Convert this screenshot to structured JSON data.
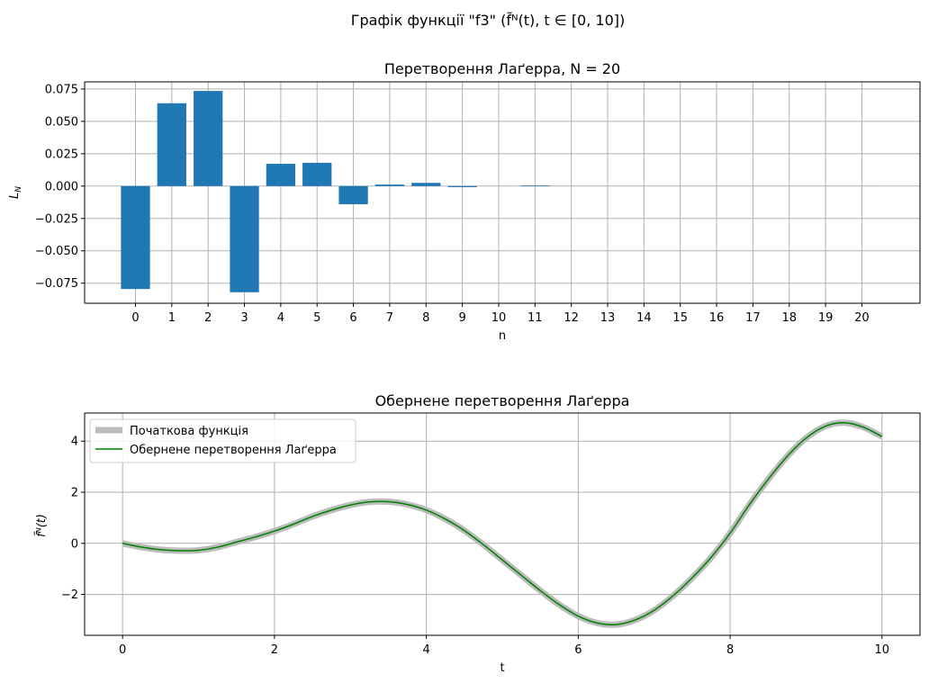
{
  "figure": {
    "suptitle": "Графік функції \"f3\" (f̃ᴺ(t), t ∈ [0, 10])"
  },
  "chart_data": [
    {
      "type": "bar",
      "title": "Перетворення Лаґерра, N = 20",
      "xlabel": "n",
      "ylabel": "L_N",
      "categories": [
        "0",
        "1",
        "2",
        "3",
        "4",
        "5",
        "6",
        "7",
        "8",
        "9",
        "10",
        "11",
        "12",
        "13",
        "14",
        "15",
        "16",
        "17",
        "18",
        "19",
        "20"
      ],
      "values": [
        -0.0795,
        0.064,
        0.0735,
        -0.082,
        0.0172,
        0.018,
        -0.014,
        0.0012,
        0.0025,
        -0.0008,
        0.0,
        0.0005,
        0.0,
        0.0,
        0.0,
        0.0,
        0.0,
        0.0,
        0.0,
        0.0,
        0.0
      ],
      "yticks": [
        "0.075",
        "0.050",
        "0.025",
        "0.000",
        "−0.025",
        "−0.050",
        "−0.075"
      ],
      "ytick_values": [
        0.075,
        0.05,
        0.025,
        0,
        -0.025,
        -0.05,
        -0.075
      ],
      "ylim": [
        -0.0905,
        0.0805
      ],
      "xlim": [
        -1.4,
        21.6
      ],
      "grid": true,
      "color": "#1f77b4"
    },
    {
      "type": "line",
      "title": "Обернене перетворення Лаґерра",
      "xlabel": "t",
      "ylabel": "f̃ᴺ(t)",
      "xlim": [
        -0.5,
        10.5
      ],
      "ylim": [
        -3.6,
        5.1
      ],
      "xticks": [
        0,
        2,
        4,
        6,
        8,
        10
      ],
      "yticks": [
        4,
        2,
        0,
        -2
      ],
      "ytick_labels": [
        "4",
        "2",
        "0",
        "−2"
      ],
      "grid": true,
      "legend": "upper-left",
      "series": [
        {
          "name": "Початкова функція",
          "color": "#bbbbbb",
          "x": [
            0,
            0.25,
            0.5,
            0.75,
            1.0,
            1.25,
            1.5,
            1.75,
            2.0,
            2.25,
            2.5,
            2.75,
            3.0,
            3.25,
            3.5,
            3.75,
            4.0,
            4.25,
            4.5,
            4.75,
            5.0,
            5.25,
            5.5,
            5.75,
            6.0,
            6.25,
            6.5,
            6.75,
            7.0,
            7.25,
            7.5,
            7.75,
            8.0,
            8.25,
            8.5,
            8.75,
            9.0,
            9.25,
            9.5,
            9.75,
            10.0
          ],
          "y": [
            0.0,
            -0.15,
            -0.25,
            -0.29,
            -0.27,
            -0.15,
            0.05,
            0.25,
            0.48,
            0.75,
            1.05,
            1.3,
            1.5,
            1.62,
            1.63,
            1.52,
            1.3,
            0.95,
            0.5,
            -0.05,
            -0.65,
            -1.25,
            -1.85,
            -2.4,
            -2.85,
            -3.12,
            -3.18,
            -3.0,
            -2.62,
            -2.05,
            -1.35,
            -0.55,
            0.4,
            1.5,
            2.5,
            3.4,
            4.12,
            4.58,
            4.72,
            4.55,
            4.18
          ]
        },
        {
          "name": "Обернене перетворення Лаґерра",
          "color": "#008000",
          "x": [
            0,
            0.25,
            0.5,
            0.75,
            1.0,
            1.25,
            1.5,
            1.75,
            2.0,
            2.25,
            2.5,
            2.75,
            3.0,
            3.25,
            3.5,
            3.75,
            4.0,
            4.25,
            4.5,
            4.75,
            5.0,
            5.25,
            5.5,
            5.75,
            6.0,
            6.25,
            6.5,
            6.75,
            7.0,
            7.25,
            7.5,
            7.75,
            8.0,
            8.25,
            8.5,
            8.75,
            9.0,
            9.25,
            9.5,
            9.75,
            10.0
          ],
          "y": [
            0.0,
            -0.15,
            -0.25,
            -0.29,
            -0.27,
            -0.15,
            0.05,
            0.25,
            0.48,
            0.75,
            1.05,
            1.3,
            1.5,
            1.62,
            1.63,
            1.52,
            1.3,
            0.95,
            0.5,
            -0.05,
            -0.65,
            -1.25,
            -1.85,
            -2.4,
            -2.85,
            -3.12,
            -3.18,
            -3.0,
            -2.62,
            -2.05,
            -1.35,
            -0.55,
            0.4,
            1.5,
            2.5,
            3.4,
            4.12,
            4.58,
            4.72,
            4.55,
            4.18
          ]
        }
      ]
    }
  ]
}
